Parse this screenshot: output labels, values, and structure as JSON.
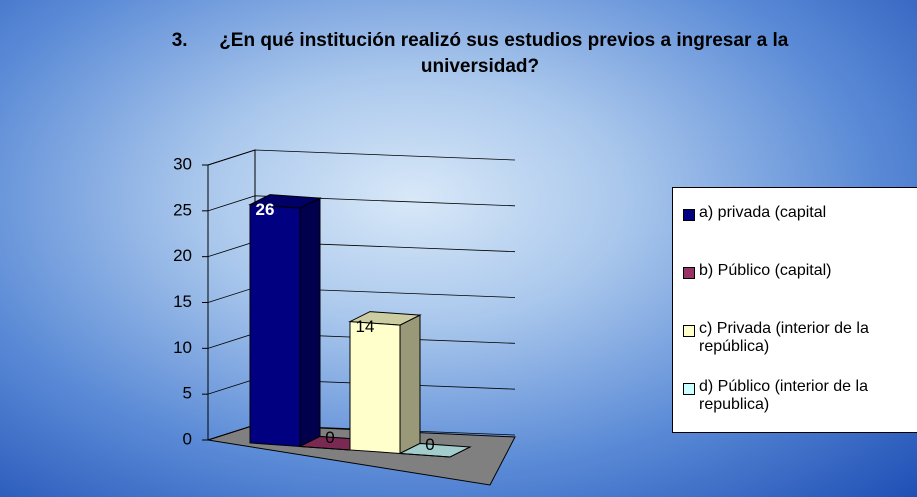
{
  "chart_data": {
    "type": "bar3d",
    "title": "3.      ¿En qué institución realizó sus estudios previos a ingresar a la universidad?",
    "categories": [
      "a) privada (capital",
      "b) Público (capital)",
      "c) Privada (interior de la república)",
      "d) Público (interior de la republica)"
    ],
    "values": [
      26,
      0,
      14,
      0
    ],
    "colors": [
      "#000080",
      "#993366",
      "#ffffcc",
      "#ccffff"
    ],
    "ylim": [
      0,
      30
    ],
    "yticks": [
      0,
      5,
      10,
      15,
      20,
      25,
      30
    ],
    "grid": true,
    "legend": "right"
  }
}
